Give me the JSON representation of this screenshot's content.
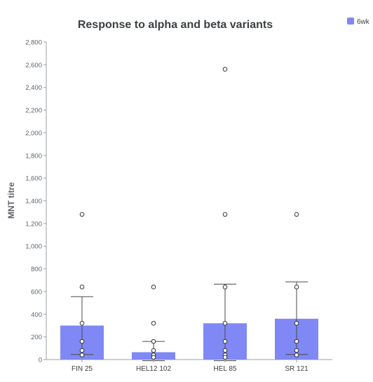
{
  "chart_data": {
    "type": "bar",
    "title": "Response to alpha and beta variants",
    "xlabel": "",
    "ylabel": "MNT titre",
    "categories": [
      "FIN 25",
      "HEL12 102",
      "HEL 85",
      "SR 121"
    ],
    "series": [
      {
        "name": "6wk",
        "values": [
          300,
          65,
          320,
          360
        ],
        "error_upper": [
          555,
          160,
          665,
          685
        ],
        "error_lower": [
          45,
          -10,
          -10,
          45
        ],
        "points": [
          [
            1280,
            640,
            320,
            160,
            80,
            40
          ],
          [
            640,
            320,
            160,
            80,
            40,
            20
          ],
          [
            2560,
            1280,
            640,
            320,
            160,
            80,
            40,
            20
          ],
          [
            1280,
            640,
            320,
            160,
            80,
            40
          ]
        ]
      }
    ],
    "ylim": [
      0,
      2800
    ],
    "yticks": [
      0,
      200,
      400,
      600,
      800,
      1000,
      1200,
      1400,
      1600,
      1800,
      2000,
      2200,
      2400,
      2600,
      2800
    ],
    "ytick_labels": [
      "0",
      "200",
      "400",
      "600",
      "800",
      "1,000",
      "1,200",
      "1,400",
      "1,600",
      "1,800",
      "2,000",
      "2,200",
      "2,400",
      "2,600",
      "2,800"
    ],
    "grid": false,
    "legend_position": "top-right",
    "colors": {
      "bar": "#7f88f4",
      "legend_swatch": "#7f88f4",
      "axis": "#9aa0a6",
      "text": "#3c4043",
      "title": "#3c4043"
    }
  }
}
